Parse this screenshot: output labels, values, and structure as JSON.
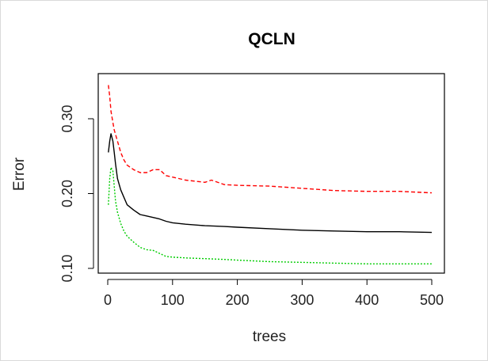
{
  "chart_data": {
    "type": "line",
    "title": "QCLN",
    "xlabel": "trees",
    "ylabel": "Error",
    "xlim": [
      0,
      500
    ],
    "ylim": [
      0.1,
      0.35
    ],
    "x_ticks": [
      {
        "value": 0,
        "label": "0"
      },
      {
        "value": 100,
        "label": "100"
      },
      {
        "value": 200,
        "label": "200"
      },
      {
        "value": 300,
        "label": "300"
      },
      {
        "value": 400,
        "label": "400"
      },
      {
        "value": 500,
        "label": "500"
      }
    ],
    "y_ticks": [
      {
        "value": 0.1,
        "label": "0.10"
      },
      {
        "value": 0.2,
        "label": "0.20"
      },
      {
        "value": 0.3,
        "label": "0.30"
      }
    ],
    "grid": false,
    "legend": "none",
    "series": [
      {
        "color": "#000000",
        "dash": "solid",
        "x": [
          1,
          3,
          5,
          8,
          10,
          12,
          15,
          20,
          25,
          30,
          40,
          50,
          60,
          70,
          80,
          90,
          100,
          120,
          150,
          180,
          200,
          250,
          300,
          350,
          400,
          450,
          500
        ],
        "y": [
          0.255,
          0.27,
          0.28,
          0.27,
          0.255,
          0.24,
          0.22,
          0.205,
          0.195,
          0.185,
          0.178,
          0.172,
          0.17,
          0.168,
          0.166,
          0.163,
          0.161,
          0.159,
          0.157,
          0.156,
          0.155,
          0.153,
          0.151,
          0.15,
          0.149,
          0.149,
          0.148
        ]
      },
      {
        "color": "#ff0000",
        "dash": "dashed",
        "x": [
          1,
          3,
          5,
          8,
          10,
          15,
          20,
          25,
          30,
          40,
          50,
          60,
          70,
          80,
          90,
          100,
          120,
          150,
          160,
          180,
          200,
          250,
          300,
          350,
          400,
          450,
          500
        ],
        "y": [
          0.345,
          0.33,
          0.31,
          0.295,
          0.285,
          0.27,
          0.255,
          0.245,
          0.238,
          0.232,
          0.228,
          0.228,
          0.232,
          0.232,
          0.224,
          0.222,
          0.218,
          0.215,
          0.218,
          0.212,
          0.211,
          0.21,
          0.207,
          0.204,
          0.203,
          0.203,
          0.201
        ]
      },
      {
        "color": "#00cc00",
        "dash": "dotted",
        "x": [
          1,
          3,
          5,
          8,
          10,
          12,
          15,
          20,
          25,
          30,
          40,
          50,
          60,
          70,
          80,
          90,
          100,
          120,
          150,
          180,
          200,
          250,
          300,
          350,
          400,
          450,
          500
        ],
        "y": [
          0.185,
          0.22,
          0.235,
          0.23,
          0.21,
          0.19,
          0.175,
          0.16,
          0.15,
          0.143,
          0.135,
          0.128,
          0.125,
          0.124,
          0.12,
          0.116,
          0.115,
          0.114,
          0.113,
          0.112,
          0.111,
          0.109,
          0.108,
          0.107,
          0.106,
          0.106,
          0.106
        ]
      }
    ]
  }
}
